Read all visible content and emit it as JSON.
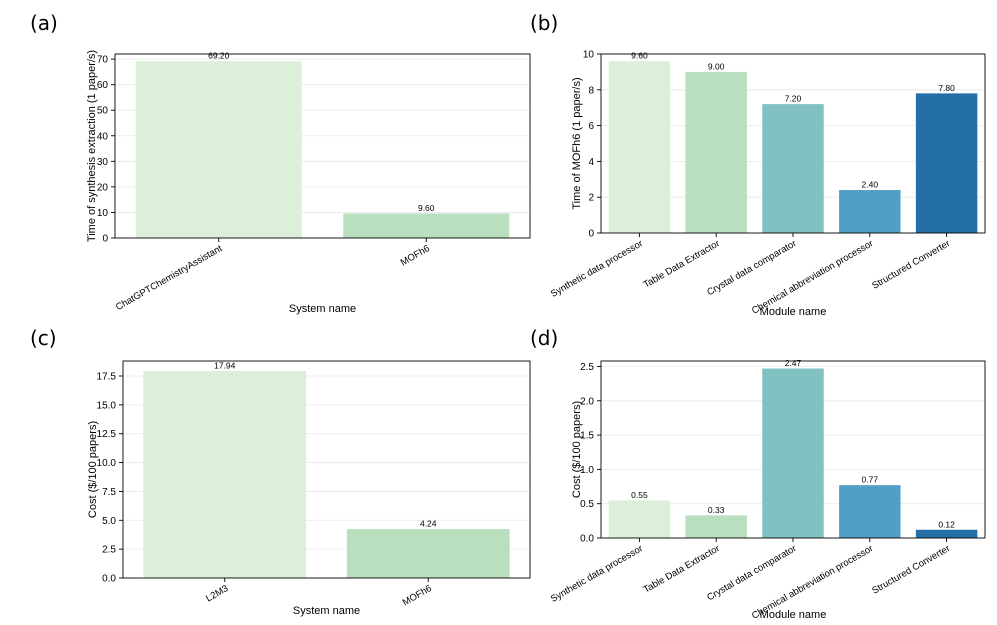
{
  "chart_data": [
    {
      "panel": "(a)",
      "type": "bar",
      "categories": [
        "ChatGPTChemistryAssistant",
        "MOFh6"
      ],
      "values": [
        69.2,
        9.6
      ],
      "value_labels": [
        "69.20",
        "9.60"
      ],
      "xlabel": "System name",
      "ylabel": "Time of synthesis extraction (1 paper/s)",
      "ylim": [
        0,
        72
      ],
      "yticks": [
        0,
        10,
        20,
        30,
        40,
        50,
        60,
        70
      ],
      "ytick_labels": [
        "0",
        "10",
        "20",
        "30",
        "40",
        "50",
        "60",
        "70"
      ],
      "colors": [
        "#dcefd9",
        "#b8dfbe"
      ],
      "grid": true
    },
    {
      "panel": "(b)",
      "type": "bar",
      "categories": [
        "Synthetic data processor",
        "Table Data Extractor",
        "Crystal data comparator",
        "Chemical abbreviation processor",
        "Structured Converter"
      ],
      "values": [
        9.6,
        9.0,
        7.2,
        2.4,
        7.8
      ],
      "value_labels": [
        "9.60",
        "9.00",
        "7.20",
        "2.40",
        "7.80"
      ],
      "xlabel": "Module name",
      "ylabel": "Time of MOFh6 (1 paper/s)",
      "ylim": [
        0,
        10
      ],
      "yticks": [
        0,
        2,
        4,
        6,
        8,
        10
      ],
      "ytick_labels": [
        "0",
        "2",
        "4",
        "6",
        "8",
        "10"
      ],
      "colors": [
        "#dcefd9",
        "#b8dfbe",
        "#82c1c1",
        "#519fc6",
        "#2470a6"
      ],
      "grid": true
    },
    {
      "panel": "(c)",
      "type": "bar",
      "categories": [
        "L2M3",
        "MOFh6"
      ],
      "values": [
        17.94,
        4.24
      ],
      "value_labels": [
        "17.94",
        "4.24"
      ],
      "xlabel": "System name",
      "ylabel": "Cost ($/100 papers)",
      "ylim": [
        0,
        18.8
      ],
      "yticks": [
        0,
        2.5,
        5,
        7.5,
        10,
        12.5,
        15,
        17.5
      ],
      "ytick_labels": [
        "0.0",
        "2.5",
        "5.0",
        "7.5",
        "10.0",
        "12.5",
        "15.0",
        "17.5"
      ],
      "colors": [
        "#dcefd9",
        "#b8dfbe"
      ],
      "grid": true
    },
    {
      "panel": "(d)",
      "type": "bar",
      "categories": [
        "Synthetic data processor",
        "Table Data Extractor",
        "Crystal data comparator",
        "Chemical abbreviation processor",
        "Structured Converter"
      ],
      "values": [
        0.55,
        0.33,
        2.47,
        0.77,
        0.12
      ],
      "value_labels": [
        "0.55",
        "0.33",
        "2.47",
        "0.77",
        "0.12"
      ],
      "xlabel": "Module name",
      "ylabel": "Cost ($/100 papers)",
      "ylim": [
        0,
        2.58
      ],
      "yticks": [
        0,
        0.5,
        1,
        1.5,
        2,
        2.5
      ],
      "ytick_labels": [
        "0.0",
        "0.5",
        "1.0",
        "1.5",
        "2.0",
        "2.5"
      ],
      "colors": [
        "#dcefd9",
        "#b8dfbe",
        "#82c1c1",
        "#519fc6",
        "#2470a6"
      ],
      "grid": true
    }
  ]
}
